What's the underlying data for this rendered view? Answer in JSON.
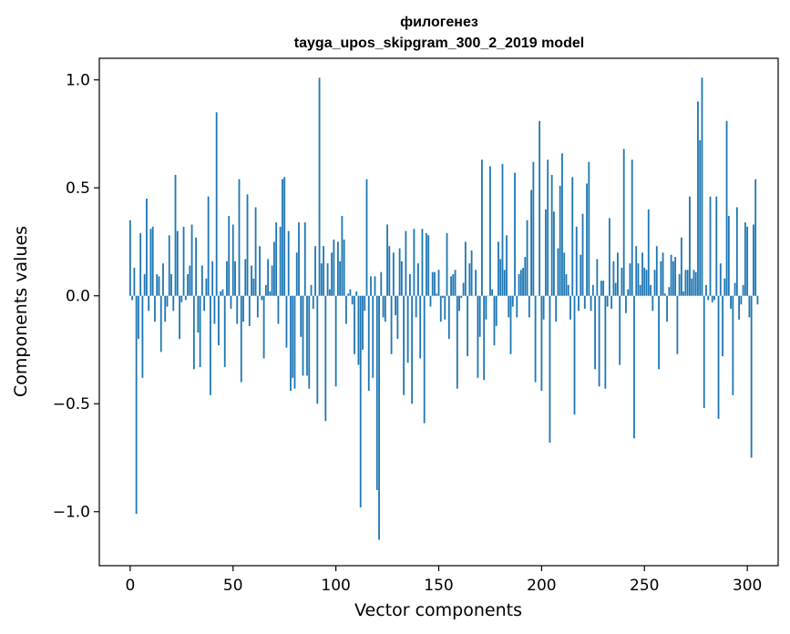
{
  "chart_data": {
    "type": "bar",
    "title_line1": "филогенез",
    "title_line2": "tayga_upos_skipgram_300_2_2019 model",
    "xlabel": "Vector components",
    "ylabel": "Components values",
    "xlim": [
      -15,
      315
    ],
    "ylim": [
      -1.25,
      1.1
    ],
    "x_ticks": [
      0,
      50,
      100,
      150,
      200,
      250,
      300
    ],
    "x_tick_labels": [
      "0",
      "50",
      "100",
      "150",
      "200",
      "250",
      "300"
    ],
    "y_ticks": [
      -1.0,
      -0.5,
      0.0,
      0.5,
      1.0
    ],
    "y_tick_labels": [
      "−1.0",
      "−0.5",
      "0.0",
      "0.5",
      "1.0"
    ],
    "grid": false,
    "legend": "none",
    "bar_color": "#1f77b4",
    "values": [
      0.35,
      -0.02,
      0.13,
      -1.01,
      -0.2,
      0.29,
      -0.38,
      0.1,
      0.45,
      -0.07,
      0.31,
      0.32,
      -0.12,
      0.1,
      0.09,
      -0.26,
      0.15,
      -0.12,
      -0.05,
      0.28,
      0.1,
      -0.07,
      0.56,
      0.3,
      -0.2,
      -0.03,
      0.32,
      -0.02,
      0.1,
      0.14,
      0.33,
      -0.34,
      0.27,
      -0.17,
      -0.33,
      0.14,
      -0.07,
      0.08,
      0.46,
      -0.46,
      0.16,
      -0.13,
      0.85,
      -0.23,
      0.02,
      0.03,
      -0.33,
      0.16,
      0.37,
      -0.06,
      0.33,
      0.16,
      -0.13,
      0.54,
      -0.4,
      -0.12,
      0.17,
      0.47,
      -0.14,
      0.14,
      0.08,
      0.41,
      -0.1,
      0.23,
      -0.02,
      -0.29,
      0.05,
      0.17,
      0.02,
      0.14,
      0.25,
      0.34,
      -0.13,
      0.32,
      0.54,
      0.55,
      -0.24,
      0.3,
      -0.44,
      -0.38,
      -0.43,
      0.2,
      0.34,
      -0.19,
      -0.37,
      0.34,
      -0.37,
      -0.43,
      0.05,
      -0.06,
      0.23,
      -0.5,
      1.01,
      0.15,
      0.23,
      -0.58,
      0.15,
      0.03,
      0.2,
      0.26,
      -0.42,
      0.25,
      0.16,
      0.37,
      0.26,
      -0.13,
      0.01,
      0.03,
      -0.04,
      -0.27,
      0.02,
      -0.32,
      -0.98,
      -0.25,
      -0.07,
      0.54,
      -0.44,
      0.09,
      -0.38,
      0.09,
      -0.9,
      -1.13,
      0.11,
      -0.1,
      -0.12,
      0.33,
      0.23,
      -0.27,
      0.2,
      -0.09,
      -0.2,
      0.22,
      0.16,
      -0.46,
      0.3,
      -0.31,
      0.1,
      -0.5,
      0.31,
      -0.1,
      0.15,
      -0.29,
      0.31,
      -0.59,
      0.29,
      0.28,
      -0.05,
      0.11,
      0.11,
      0.01,
      0.12,
      -0.12,
      -0.01,
      -0.11,
      0.29,
      -0.2,
      0.09,
      0.1,
      0.12,
      -0.43,
      -0.07,
      -0.01,
      0.06,
      0.25,
      -0.28,
      0.15,
      0.21,
      0.0,
      0.12,
      -0.38,
      -0.19,
      0.63,
      -0.39,
      -0.11,
      0.0,
      0.6,
      0.03,
      -0.23,
      -0.14,
      0.25,
      0.17,
      0.61,
      0.12,
      0.28,
      -0.1,
      -0.27,
      -0.05,
      0.57,
      -0.1,
      0.1,
      0.12,
      0.13,
      0.18,
      0.35,
      -0.1,
      0.49,
      0.62,
      -0.4,
      0.0,
      0.81,
      -0.44,
      -0.11,
      0.4,
      0.63,
      -0.68,
      0.56,
      0.39,
      -0.12,
      0.22,
      0.51,
      0.66,
      0.2,
      0.1,
      0.05,
      -0.11,
      0.55,
      -0.55,
      0.32,
      -0.07,
      0.19,
      0.38,
      -0.06,
      0.52,
      0.62,
      -0.07,
      0.05,
      -0.34,
      0.17,
      -0.42,
      0.07,
      0.07,
      -0.43,
      -0.05,
      0.36,
      -0.06,
      0.16,
      0.06,
      0.2,
      -0.32,
      0.13,
      0.68,
      -0.08,
      0.03,
      0.15,
      0.63,
      -0.66,
      0.23,
      0.15,
      0.05,
      0.2,
      0.13,
      0.12,
      0.4,
      0.05,
      -0.07,
      0.12,
      0.23,
      -0.34,
      0.16,
      0.2,
      0.01,
      -0.12,
      0.04,
      0.19,
      0.16,
      0.18,
      -0.27,
      0.1,
      0.27,
      0.02,
      0.12,
      0.12,
      0.46,
      0.08,
      0.12,
      0.11,
      0.9,
      0.72,
      1.01,
      -0.52,
      0.05,
      -0.02,
      0.46,
      -0.03,
      -0.02,
      0.46,
      -0.57,
      0.15,
      -0.28,
      0.08,
      0.81,
      0.37,
      -0.06,
      -0.46,
      0.06,
      0.41,
      -0.11,
      -0.04,
      0.05,
      0.34,
      0.32,
      -0.1,
      -0.75,
      0.33,
      0.54,
      -0.04
    ]
  }
}
